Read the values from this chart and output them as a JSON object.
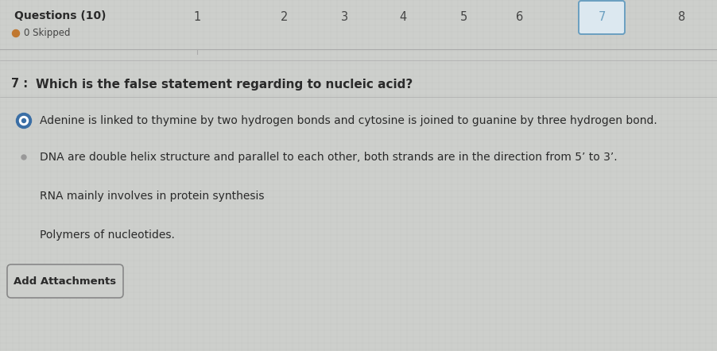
{
  "bg_color": "#cdcfcc",
  "content_bg": "#c8cac7",
  "top_section_bg": "#c8cac7",
  "questions_label": "Questions (10)",
  "skipped_label": "0 Skipped",
  "skipped_dot_color": "#c07830",
  "nav_numbers": [
    "1",
    "2",
    "3",
    "4",
    "5",
    "6",
    "7",
    "8"
  ],
  "active_nav": 6,
  "active_box_color": "#6a9fc0",
  "active_box_fill": "#dce8f0",
  "question_number": "7 :",
  "question_text": "Which is the false statement regarding to nucleic acid?",
  "options": [
    "Adenine is linked to thymine by two hydrogen bonds and cytosine is joined to guanine by three hydrogen bond.",
    "DNA are double helix structure and parallel to each other, both strands are in the direction from 5’ to 3’.",
    "RNA mainly involves in protein synthesis",
    "Polymers of nucleotides."
  ],
  "selected_option": 0,
  "selected_radio_outer": "#3a6ea5",
  "selected_radio_inner_ring": "#7aaad0",
  "add_attachments_label": "Add Attachments",
  "text_color": "#2a2a2a",
  "nav_text_color": "#444444",
  "separator_color": "#aaaaaa",
  "question_font_size": 10.5,
  "option_font_size": 10,
  "nav_font_size": 9.5,
  "header_font_size": 9,
  "skipped_font_size": 8.5
}
